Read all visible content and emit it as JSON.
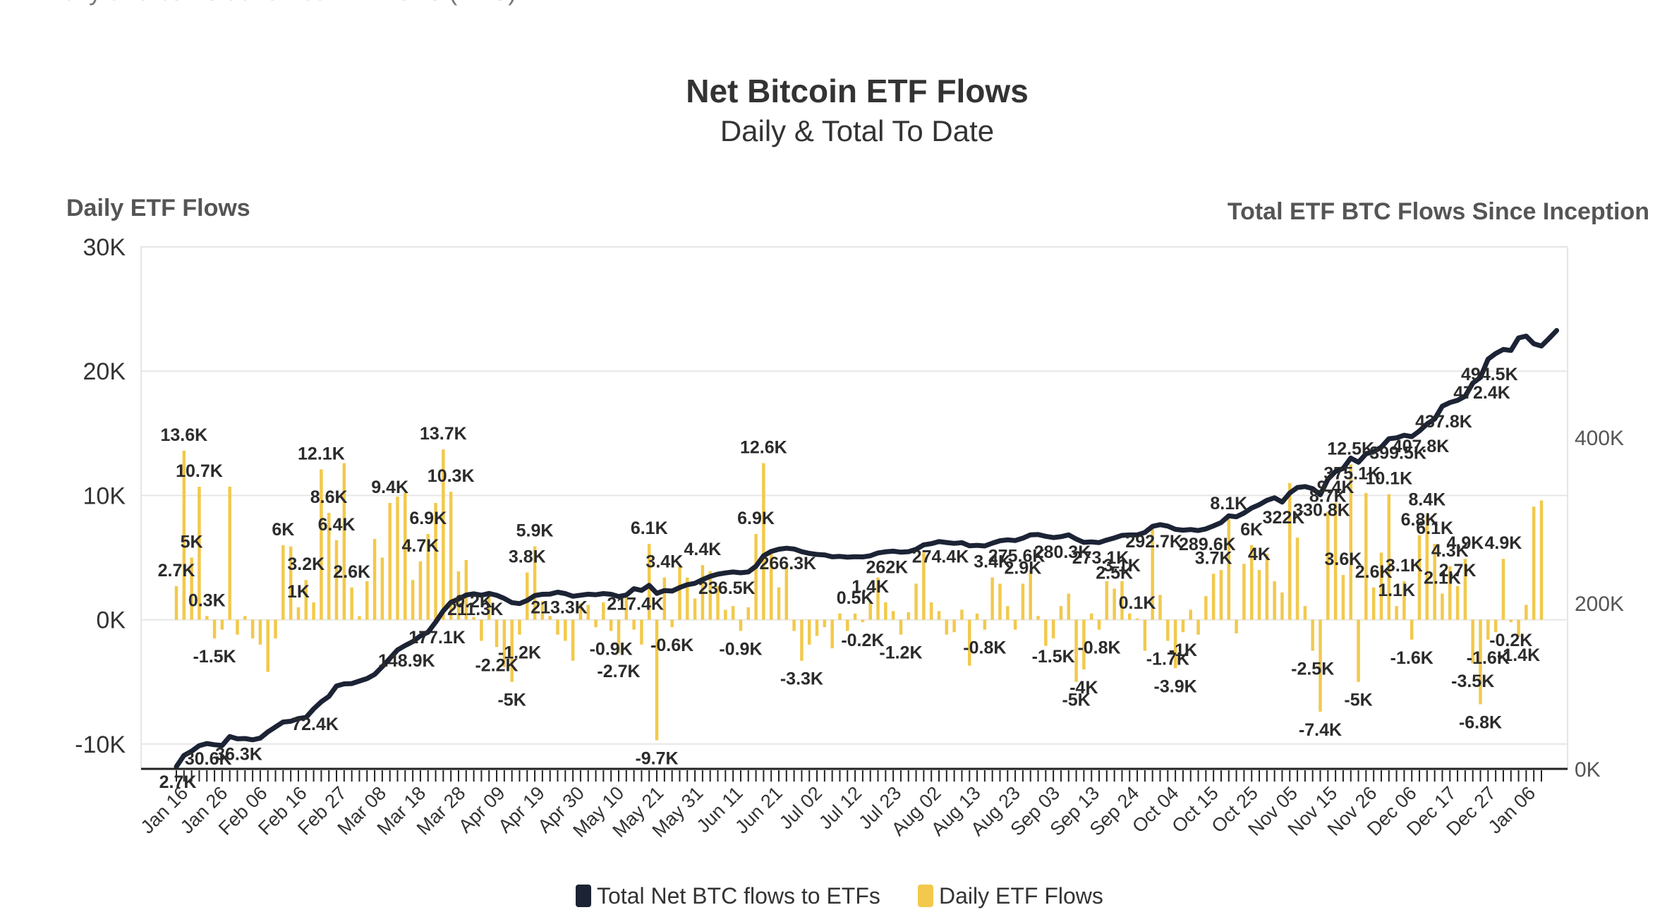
{
  "top_caption": "Daily and cumulative net ETF flows (BTC)",
  "chart_data": {
    "type": "bar",
    "title": "Net Bitcoin ETF Flows",
    "subtitle": "Daily & Total To Date",
    "y_left_title": "Daily ETF Flows",
    "y_right_title": "Total ETF BTC Flows Since Inception",
    "ylim_left": [
      -12000,
      30000
    ],
    "ylim_right": [
      0,
      630000
    ],
    "y_left_ticks": [
      {
        "v": -10000,
        "label": "-10K"
      },
      {
        "v": 0,
        "label": "0K"
      },
      {
        "v": 10000,
        "label": "10K"
      },
      {
        "v": 20000,
        "label": "20K"
      },
      {
        "v": 30000,
        "label": "30K"
      }
    ],
    "y_right_ticks": [
      {
        "v": 0,
        "label": "0K"
      },
      {
        "v": 200000,
        "label": "200K"
      },
      {
        "v": 400000,
        "label": "400K"
      }
    ],
    "x_tick_labels": [
      "Jan 16",
      "Jan 26",
      "Feb 06",
      "Feb 16",
      "Feb 27",
      "Mar 08",
      "Mar 18",
      "Mar 28",
      "Apr 09",
      "Apr 19",
      "Apr 30",
      "May 10",
      "May 21",
      "May 31",
      "Jun 11",
      "Jun 21",
      "Jul 02",
      "Jul 12",
      "Jul 23",
      "Aug 02",
      "Aug 13",
      "Aug 23",
      "Sep 03",
      "Sep 13",
      "Sep 24",
      "Oct 04",
      "Oct 15",
      "Oct 25",
      "Nov 05",
      "Nov 15",
      "Nov 26",
      "Dec 06",
      "Dec 17",
      "Dec 27",
      "Jan 06"
    ],
    "legend": [
      {
        "name": "Total Net BTC flows to ETFs",
        "color": "#1c2335"
      },
      {
        "name": "Daily ETF Flows",
        "color": "#f2c94c"
      }
    ],
    "grid": true,
    "legend_position": "bottom",
    "daily_flows": [
      2700,
      13600,
      5000,
      10700,
      300,
      -1500,
      -800,
      10700,
      -1200,
      300,
      -1500,
      -2000,
      -4200,
      -1500,
      6000,
      5900,
      1000,
      3200,
      1400,
      12100,
      8600,
      6400,
      12600,
      2600,
      300,
      3100,
      6500,
      5000,
      9400,
      9900,
      10200,
      3200,
      4700,
      6900,
      9400,
      13700,
      10300,
      3900,
      4800,
      211,
      -1700,
      2100,
      -2200,
      -3800,
      -5000,
      -1200,
      3800,
      5900,
      1500,
      300,
      -1200,
      -1700,
      -3300,
      1300,
      1200,
      -600,
      1400,
      -900,
      -2700,
      1800,
      -800,
      -2000,
      6100,
      -9700,
      3400,
      -600,
      4300,
      3400,
      1700,
      4400,
      3900,
      2700,
      800,
      1100,
      -900,
      1000,
      6900,
      12600,
      5300,
      2600,
      4400,
      -900,
      -3300,
      -2000,
      -1300,
      -600,
      -2300,
      500,
      -900,
      500,
      -200,
      1400,
      3400,
      1400,
      700,
      -1200,
      600,
      2900,
      5400,
      1400,
      700,
      -1200,
      -1000,
      800,
      -3700,
      500,
      -800,
      3400,
      2900,
      1100,
      -800,
      2900,
      4000,
      300,
      -2100,
      -1500,
      1100,
      2100,
      -5000,
      -4000,
      500,
      -800,
      3100,
      2500,
      3100,
      500,
      100,
      -2500,
      7300,
      2000,
      -1700,
      -3900,
      -1000,
      800,
      -1200,
      1900,
      3700,
      4000,
      8100,
      -1100,
      4500,
      6000,
      4000,
      5300,
      3100,
      2200,
      11000,
      6600,
      1100,
      -2500,
      -7400,
      8700,
      9400,
      3600,
      12500,
      -5000,
      10200,
      2600,
      5400,
      10100,
      1100,
      3100,
      -1600,
      6800,
      8400,
      6100,
      2100,
      4300,
      2700,
      4900,
      -3500,
      -6800,
      -1600,
      -1000,
      4900,
      -200,
      -1400,
      1200,
      9100,
      9600
    ],
    "total_flows": [
      2700,
      16300,
      21300,
      28000,
      30600,
      29100,
      28300,
      39000,
      36300,
      36600,
      35100,
      37100,
      44600,
      50600,
      56500,
      57500,
      60700,
      62100,
      72400,
      81000,
      87400,
      100000,
      102600,
      102900,
      106000,
      109000,
      114000,
      123400,
      133300,
      143500,
      148900,
      153600,
      160500,
      165000,
      177100,
      190800,
      201100,
      205000,
      209800,
      211300,
      209600,
      211700,
      209500,
      205700,
      200700,
      199500,
      203300,
      209200,
      210700,
      211000,
      213300,
      211600,
      208300,
      209600,
      210800,
      210200,
      211600,
      210700,
      208000,
      209800,
      217400,
      215400,
      221500,
      211800,
      215200,
      214600,
      218900,
      222300,
      224000,
      228400,
      232300,
      235000,
      236500,
      237600,
      236700,
      237700,
      244600,
      257200,
      262500,
      265100,
      266300,
      265400,
      262100,
      260100,
      258800,
      258200,
      255900,
      256400,
      255500,
      256000,
      255800,
      257200,
      260600,
      262000,
      262700,
      261500,
      262100,
      265000,
      270400,
      271800,
      274400,
      273200,
      272200,
      273000,
      269300,
      269800,
      269000,
      272400,
      275300,
      276400,
      275600,
      278500,
      282500,
      282800,
      280700,
      279200,
      280300,
      282400,
      277400,
      273400,
      273900,
      273100,
      276200,
      278700,
      281800,
      282300,
      282400,
      285400,
      292700,
      294700,
      293000,
      289100,
      288100,
      288900,
      287700,
      289600,
      293300,
      297300,
      305400,
      304300,
      308800,
      314800,
      318800,
      324100,
      327200,
      322000,
      333000,
      339600,
      340700,
      338200,
      330800,
      349600,
      359000,
      362600,
      375100,
      370100,
      380300,
      382900,
      388300,
      398400,
      399500,
      402600,
      401000,
      407800,
      416200,
      422300,
      437800,
      442100,
      444800,
      449700,
      465600,
      472400,
      494500,
      501300,
      506200,
      505000,
      520200,
      522300,
      513000,
      510400,
      519500,
      529100
    ]
  }
}
